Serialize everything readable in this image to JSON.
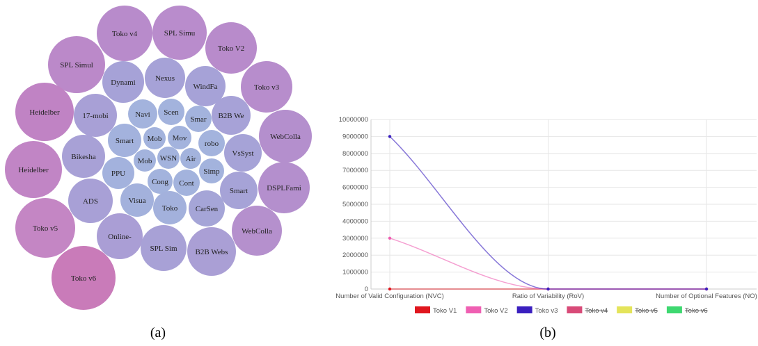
{
  "chart_data": [
    {
      "type": "bubble",
      "caption": "(a)",
      "categories": [
        "Toko v4",
        "SPL Simu",
        "Toko V2",
        "SPL Simul",
        "Toko v3",
        "Heidelber",
        "WebColla",
        "Heidelber",
        "DSPLFami",
        "Toko v5",
        "WebColla",
        "Toko v6",
        "Dynami",
        "Nexus",
        "WindFa",
        "17-mobi",
        "B2B We",
        "VsSyst",
        "Bikesha",
        "Smart",
        "ADS",
        "CarSen",
        "Online-",
        "SPL Sim",
        "B2B Webs",
        "Navi",
        "Scen",
        "Smar",
        "Smart",
        "Mob",
        "Mov",
        "robo",
        "Mob",
        "WSN",
        "Air",
        "PPU",
        "Simp",
        "Cong",
        "Cont",
        "Visua",
        "Toko"
      ],
      "values": [
        40,
        39,
        37,
        41,
        37,
        42,
        38,
        41,
        37,
        43,
        36,
        46,
        30,
        29,
        29,
        31,
        28,
        27,
        31,
        27,
        32,
        26,
        33,
        33,
        35,
        21,
        19,
        19,
        24,
        16,
        17,
        19,
        16,
        16,
        15,
        23,
        18,
        18,
        19,
        24,
        24
      ],
      "colors": [
        "#b88bcb",
        "#b98ccc",
        "#b88bcb",
        "#bb89c9",
        "#b78dcc",
        "#c083c4",
        "#b48fcd",
        "#c185c5",
        "#b48fcd",
        "#c486c4",
        "#b590cd",
        "#c97bb9",
        "#a6a2d7",
        "#a6a2d7",
        "#a6a2d7",
        "#a8a0d6",
        "#a7a2d7",
        "#a6a3d7",
        "#a8a1d6",
        "#a6a3d7",
        "#a8a0d6",
        "#a5a5d7",
        "#aa9ed5",
        "#a8a1d6",
        "#aa9fd5",
        "#a3b3dd",
        "#a3b3dd",
        "#a3b3dd",
        "#a3b2dd",
        "#a3b3dd",
        "#a3b3dd",
        "#a3b3dd",
        "#a3b3dd",
        "#a3b3dd",
        "#a3b3dd",
        "#a3b2dd",
        "#a3b3dd",
        "#a3b3dd",
        "#a3b3dd",
        "#a3b1dc",
        "#a3b1dc"
      ]
    },
    {
      "type": "line",
      "caption": "(b)",
      "categories": [
        "Number of Valid Configuration (NVC)",
        "Ratio of Variability (RoV)",
        "Number of Optional Features (NO)"
      ],
      "ylim": [
        0,
        10000000
      ],
      "yticks": [
        0,
        1000000,
        2000000,
        3000000,
        4000000,
        5000000,
        6000000,
        7000000,
        8000000,
        9000000,
        10000000
      ],
      "grid": true,
      "series": [
        {
          "name": "Toko V1",
          "color": "#e0161e",
          "values": [
            0,
            0,
            0
          ]
        },
        {
          "name": "Toko V2",
          "color": "#ef5fb2",
          "values": [
            3000000,
            0,
            0
          ]
        },
        {
          "name": "Toko v3",
          "color": "#3a1fbf",
          "values": [
            9000000,
            0,
            0
          ]
        },
        {
          "name": "Toko v4",
          "color": "#d84a78",
          "hidden": true,
          "values": [
            0,
            0,
            0
          ]
        },
        {
          "name": "Toko v5",
          "color": "#e4e45a",
          "hidden": true,
          "values": [
            0,
            0,
            0
          ]
        },
        {
          "name": "Toko v6",
          "color": "#3ed870",
          "hidden": true,
          "values": [
            0,
            0,
            0
          ]
        }
      ]
    }
  ]
}
